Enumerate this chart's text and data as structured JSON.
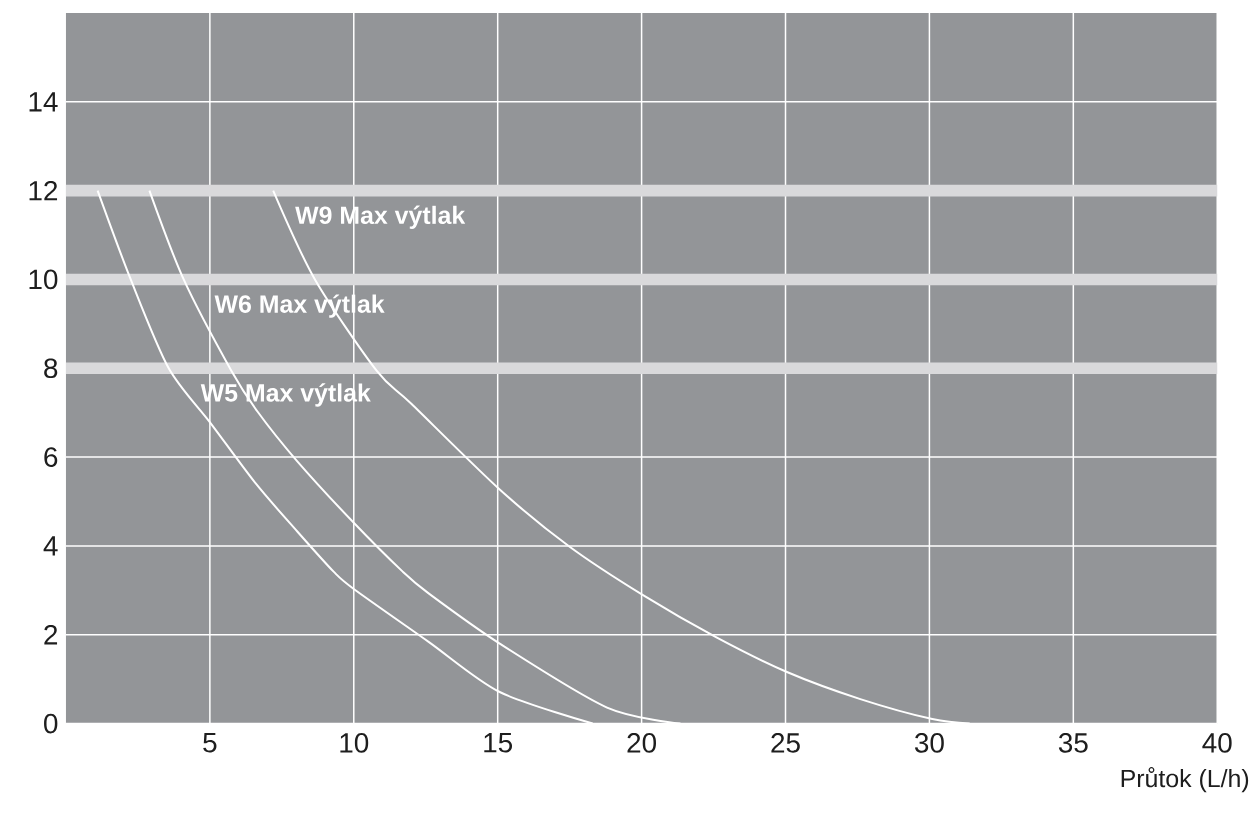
{
  "chart_data": {
    "type": "line",
    "xlabel": "Průtok (L/h)",
    "xlim": [
      0,
      40
    ],
    "ylim": [
      0,
      16
    ],
    "xticks": [
      5,
      10,
      15,
      20,
      25,
      30,
      35,
      40
    ],
    "yticks": [
      0,
      2,
      4,
      6,
      8,
      10,
      12,
      14
    ],
    "grid": true,
    "series": [
      {
        "color": "#ffffff",
        "x": [
          1.1,
          2.25,
          3.57,
          5.03,
          6.6,
          8.03,
          9.3,
          10.0,
          12.6,
          15.07,
          18.3
        ],
        "values": [
          12,
          10,
          8,
          6.76,
          5.4,
          4.33,
          3.42,
          3.03,
          1.84,
          0.71,
          0
        ]
      },
      {
        "color": "#ffffff",
        "x": [
          2.9,
          4.09,
          5.75,
          6.66,
          8.03,
          10.0,
          11.7,
          12.6,
          15.07,
          18.8,
          21.35
        ],
        "values": [
          12,
          10,
          7.94,
          7.02,
          5.91,
          4.52,
          3.42,
          2.93,
          1.8,
          0.36,
          0
        ]
      },
      {
        "color": "#ffffff",
        "x": [
          7.2,
          8.65,
          10.8,
          12.0,
          15.07,
          17.5,
          20.05,
          22.6,
          25.05,
          27.6,
          30.1,
          31.4
        ],
        "values": [
          12,
          10,
          7.94,
          7.2,
          5.27,
          3.98,
          2.89,
          1.94,
          1.16,
          0.55,
          0.1,
          0
        ]
      }
    ],
    "bands": [
      {
        "axis": "y",
        "from": 11.87,
        "to": 12.13,
        "color": "#d9d9db",
        "label": "W9 Max výtlak"
      },
      {
        "axis": "y",
        "from": 9.87,
        "to": 10.13,
        "color": "#d9d9db",
        "label": "W6 Max výtlak"
      },
      {
        "axis": "y",
        "from": 7.87,
        "to": 8.13,
        "color": "#d9d9db",
        "label": "W5  Max výtlak"
      }
    ]
  }
}
